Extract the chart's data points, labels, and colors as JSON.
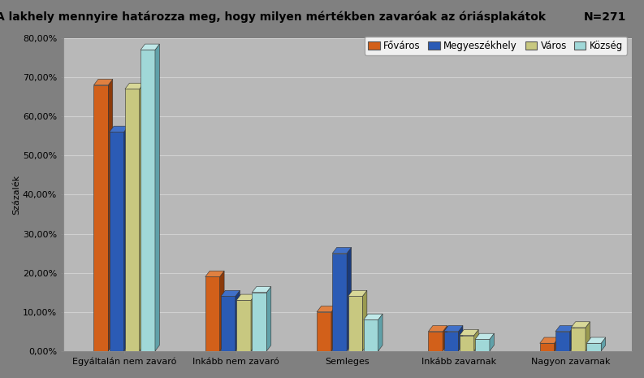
{
  "title": "A lakhely mennyire határozza meg, hogy milyen mértékben zavaróak az óriásplakátok",
  "n_label": "N=271",
  "ylabel": "Százalék",
  "categories": [
    "Egyáltalán nem zavaró",
    "Inkább nem zavaró",
    "Semleges",
    "Inkább zavarnak",
    "Nagyon zavarnak"
  ],
  "series_names": [
    "Főváros",
    "Megyeszékhely",
    "Város",
    "Község"
  ],
  "series": {
    "Főváros": [
      68.0,
      19.0,
      10.0,
      5.0,
      2.0
    ],
    "Megyeszékhely": [
      56.0,
      14.0,
      25.0,
      5.0,
      5.0
    ],
    "Város": [
      67.0,
      13.0,
      14.0,
      4.0,
      6.0
    ],
    "Község": [
      77.0,
      15.0,
      8.0,
      3.0,
      2.0
    ]
  },
  "colors": {
    "Főváros": "#D2601A",
    "Megyeszékhely": "#2B5BB5",
    "Város": "#C8C880",
    "Község": "#A0D8D8"
  },
  "dark_colors": {
    "Főváros": "#8B3A0A",
    "Megyeszékhely": "#1A3A7A",
    "Város": "#9A9A50",
    "Község": "#60A0A8"
  },
  "top_colors": {
    "Főváros": "#E08040",
    "Megyeszékhely": "#4070C8",
    "Város": "#D8D898",
    "Község": "#C0E8E8"
  },
  "ylim": [
    0,
    80
  ],
  "yticks": [
    0,
    10,
    20,
    30,
    40,
    50,
    60,
    70,
    80
  ],
  "ytick_labels": [
    "0,00%",
    "10,00%",
    "20,00%",
    "30,00%",
    "40,00%",
    "50,00%",
    "60,00%",
    "70,00%",
    "80,00%"
  ],
  "outer_bg": "#808080",
  "plot_bg": "#B8B8B8",
  "grid_color": "#D0D0D0",
  "bar_width": 0.13,
  "depth": 0.04,
  "title_fontsize": 10,
  "axis_fontsize": 8,
  "legend_fontsize": 8.5
}
